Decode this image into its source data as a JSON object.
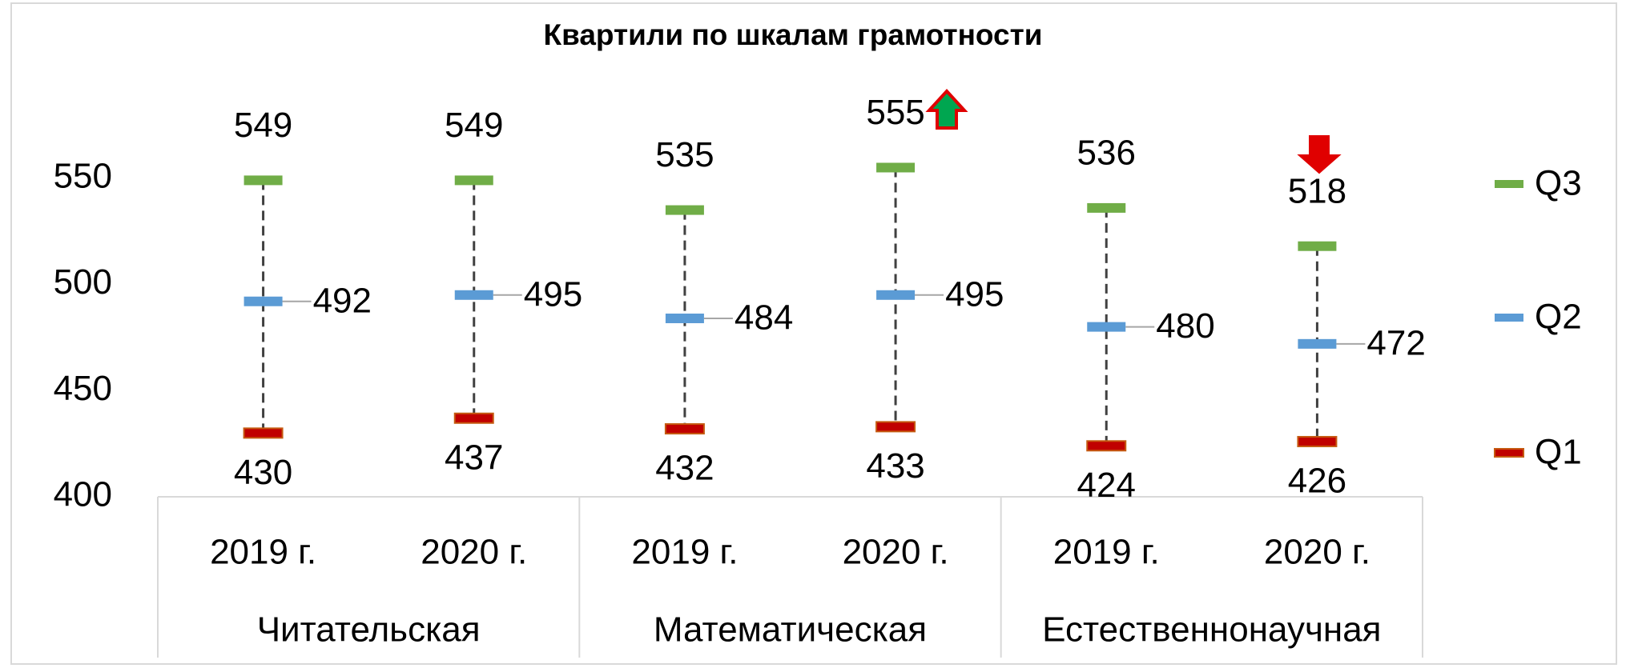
{
  "chart_data": {
    "type": "quartile",
    "title": "Квартили по шкалам грамотности",
    "groups": [
      "Читательская",
      "Математическая",
      "Естественнонаучная"
    ],
    "categories": [
      "2019 г.",
      "2020 г.",
      "2019 г.",
      "2020 г.",
      "2019 г.",
      "2020 г."
    ],
    "series": [
      {
        "name": "Q3",
        "color": "#70ad47",
        "label_color": "#548235",
        "values": [
          549,
          549,
          535,
          555,
          536,
          518
        ]
      },
      {
        "name": "Q2",
        "color": "#5b9bd5",
        "label_color": "#2e75b6",
        "values": [
          492,
          495,
          484,
          495,
          480,
          472
        ]
      },
      {
        "name": "Q1",
        "color": "#c00000",
        "label_color": "#c55a11",
        "values": [
          430,
          437,
          432,
          433,
          424,
          426
        ]
      }
    ],
    "ylim": [
      400,
      600
    ],
    "yticks": [
      400,
      450,
      500,
      550
    ],
    "legend": "right"
  }
}
